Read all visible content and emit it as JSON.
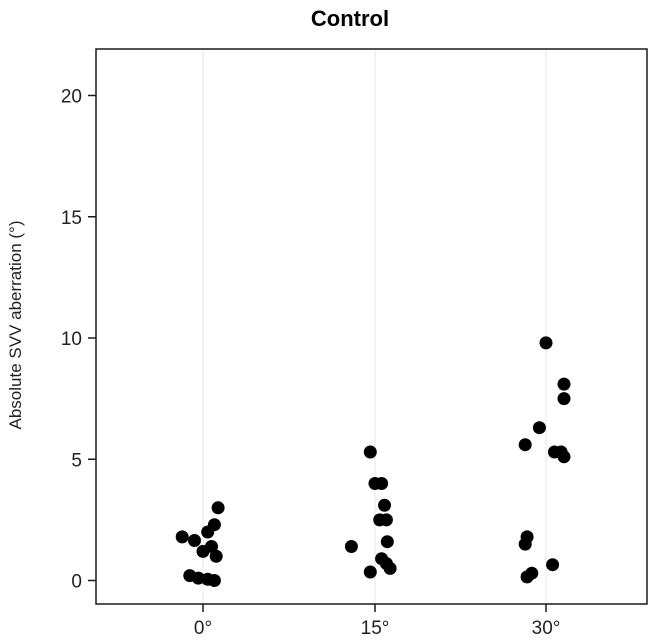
{
  "chart_data": {
    "type": "scatter",
    "title": "Control",
    "xlabel": "",
    "ylabel": "Absolute SVV aberration (°)",
    "categories": [
      "0°",
      "15°",
      "30°"
    ],
    "ylim": [
      -1,
      22
    ],
    "yticks": [
      0,
      5,
      10,
      15,
      20
    ],
    "grid": "vertical",
    "points": [
      {
        "category": "0°",
        "offset": -0.22,
        "y": 1.8
      },
      {
        "category": "0°",
        "offset": -0.09,
        "y": 1.65
      },
      {
        "category": "0°",
        "offset": 0.05,
        "y": 2.0
      },
      {
        "category": "0°",
        "offset": 0.12,
        "y": 2.3
      },
      {
        "category": "0°",
        "offset": 0.16,
        "y": 3.0
      },
      {
        "category": "0°",
        "offset": 0.0,
        "y": 1.2
      },
      {
        "category": "0°",
        "offset": 0.09,
        "y": 1.4
      },
      {
        "category": "0°",
        "offset": 0.14,
        "y": 1.0
      },
      {
        "category": "0°",
        "offset": -0.14,
        "y": 0.2
      },
      {
        "category": "0°",
        "offset": -0.05,
        "y": 0.1
      },
      {
        "category": "0°",
        "offset": 0.05,
        "y": 0.05
      },
      {
        "category": "0°",
        "offset": 0.12,
        "y": 0.0
      },
      {
        "category": "15°",
        "offset": -0.05,
        "y": 5.3
      },
      {
        "category": "15°",
        "offset": 0.0,
        "y": 4.0
      },
      {
        "category": "15°",
        "offset": 0.07,
        "y": 4.0
      },
      {
        "category": "15°",
        "offset": 0.1,
        "y": 3.1
      },
      {
        "category": "15°",
        "offset": 0.05,
        "y": 2.5
      },
      {
        "category": "15°",
        "offset": 0.12,
        "y": 2.5
      },
      {
        "category": "15°",
        "offset": 0.13,
        "y": 1.6
      },
      {
        "category": "15°",
        "offset": -0.25,
        "y": 1.4
      },
      {
        "category": "15°",
        "offset": 0.07,
        "y": 0.9
      },
      {
        "category": "15°",
        "offset": 0.12,
        "y": 0.7
      },
      {
        "category": "15°",
        "offset": 0.16,
        "y": 0.5
      },
      {
        "category": "15°",
        "offset": -0.05,
        "y": 0.35
      },
      {
        "category": "30°",
        "offset": 0.0,
        "y": 9.8
      },
      {
        "category": "30°",
        "offset": 0.19,
        "y": 8.1
      },
      {
        "category": "30°",
        "offset": 0.19,
        "y": 7.5
      },
      {
        "category": "30°",
        "offset": -0.07,
        "y": 6.3
      },
      {
        "category": "30°",
        "offset": -0.22,
        "y": 5.6
      },
      {
        "category": "30°",
        "offset": 0.09,
        "y": 5.3
      },
      {
        "category": "30°",
        "offset": 0.16,
        "y": 5.3
      },
      {
        "category": "30°",
        "offset": 0.19,
        "y": 5.1
      },
      {
        "category": "30°",
        "offset": -0.2,
        "y": 1.8
      },
      {
        "category": "30°",
        "offset": -0.22,
        "y": 1.5
      },
      {
        "category": "30°",
        "offset": 0.07,
        "y": 0.65
      },
      {
        "category": "30°",
        "offset": -0.15,
        "y": 0.3
      },
      {
        "category": "30°",
        "offset": -0.2,
        "y": 0.15
      }
    ]
  }
}
